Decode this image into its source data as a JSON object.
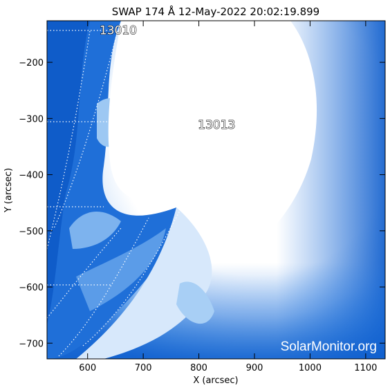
{
  "chart_data": {
    "type": "heatmap",
    "title": "SWAP 174 Å 12-May-2022 20:02:19.899",
    "xlabel": "X (arcsec)",
    "ylabel": "Y (arcsec)",
    "xlim": [
      527,
      1135
    ],
    "ylim": [
      -728,
      -126
    ],
    "x_ticks": [
      600,
      700,
      800,
      900,
      1000,
      1100
    ],
    "y_ticks": [
      -200,
      -300,
      -400,
      -500,
      -600,
      -700
    ],
    "colormap": "blue (dark blue to white)",
    "grid_lines": "dotted white heliographic grid",
    "active_regions": [
      {
        "label": "13010",
        "x": 655,
        "y": -150
      },
      {
        "label": "13013",
        "x": 832,
        "y": -318
      }
    ],
    "watermark": "SolarMonitor.org"
  },
  "colors": {
    "background": "#ffffff",
    "axis": "#000000",
    "dark_blue": "#0a55c8",
    "mid_blue": "#3d8ee6",
    "light_blue": "#9cc8f3",
    "saturated": "#ffffff"
  }
}
